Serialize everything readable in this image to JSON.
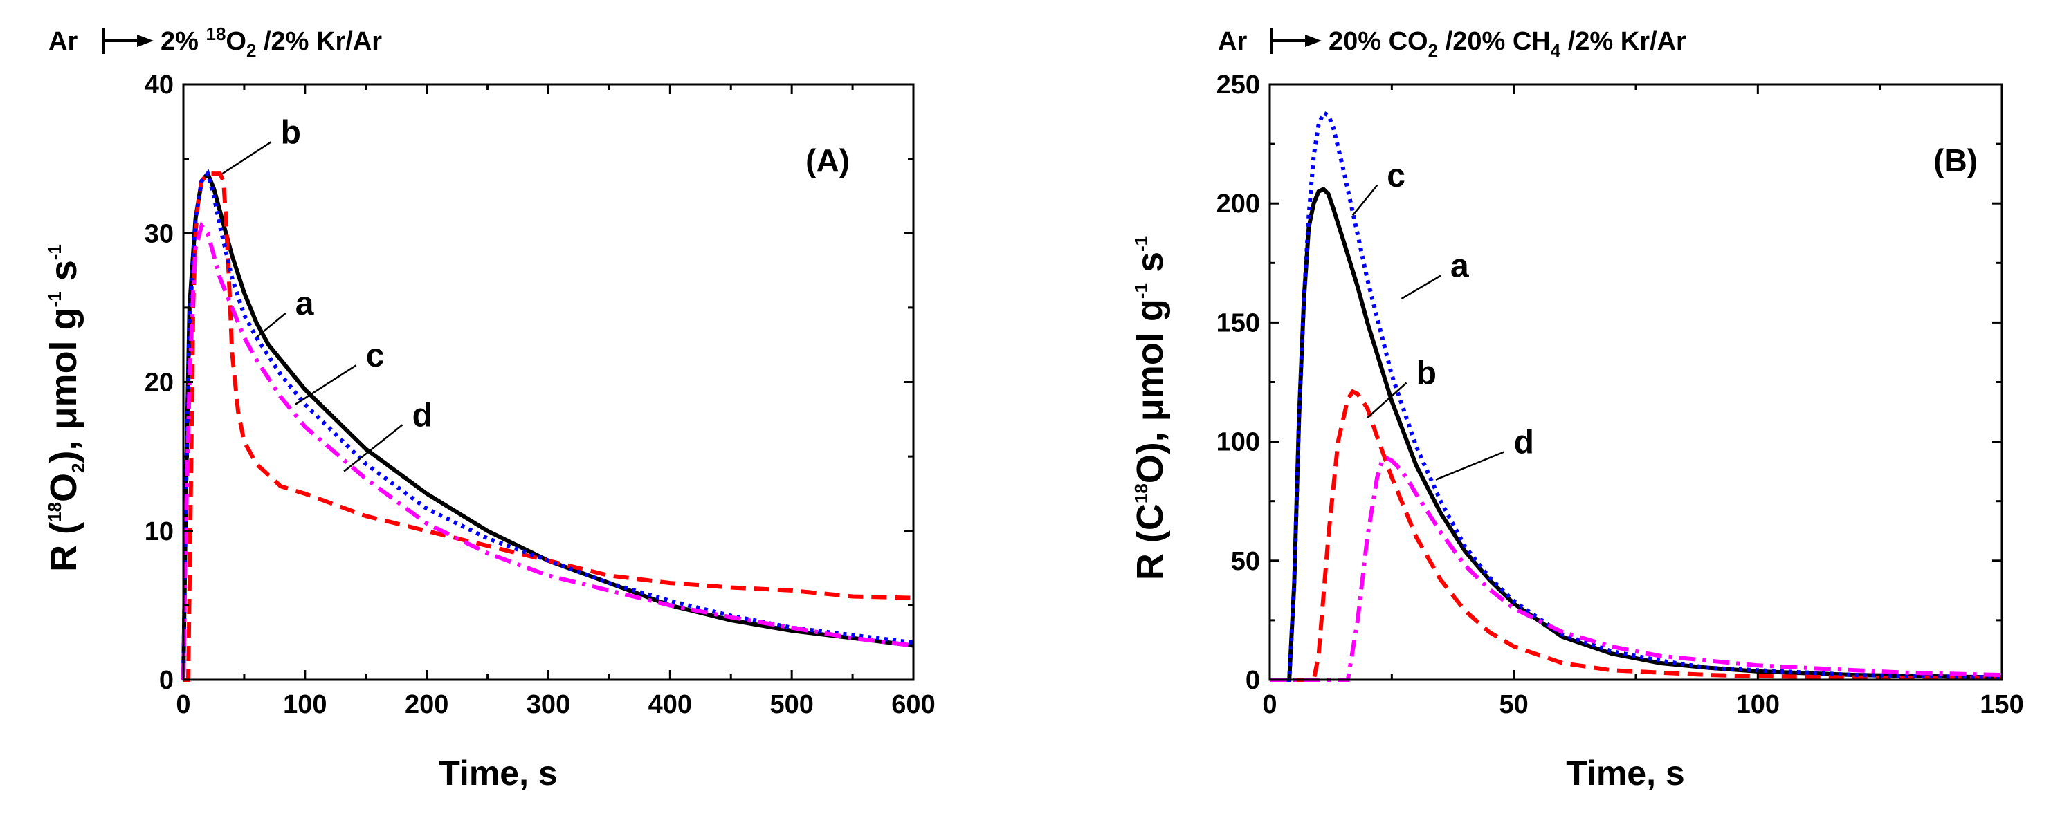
{
  "chart_data": [
    {
      "type": "line",
      "panel_label": "(A)",
      "header": {
        "gas_from": "Ar",
        "percent1": "2% ",
        "iso": "18",
        "gas1": "O",
        "gas1_sub": "2",
        "rest": " /2% Kr/Ar"
      },
      "xlabel": "Time, s",
      "ylabel": {
        "prefix": "R (",
        "iso": "18",
        "main": "O",
        "sub": "2",
        "mid": "), μmol g",
        "exp1": "-1",
        "mid2": " s",
        "exp2": "-1"
      },
      "xlim": [
        0,
        600
      ],
      "ylim": [
        0,
        40
      ],
      "xticks": [
        "0",
        "100",
        "200",
        "300",
        "400",
        "500",
        "600"
      ],
      "xtick_values": [
        0,
        100,
        200,
        300,
        400,
        500,
        600
      ],
      "yticks": [
        "0",
        "10",
        "20",
        "30",
        "40"
      ],
      "ytick_values": [
        0,
        10,
        20,
        30,
        40
      ],
      "series": [
        {
          "name": "a",
          "color": "#000000",
          "dash": "solid",
          "x": [
            0,
            2,
            5,
            10,
            15,
            20,
            25,
            30,
            40,
            50,
            60,
            70,
            80,
            100,
            150,
            200,
            250,
            300,
            350,
            400,
            450,
            500,
            550,
            600
          ],
          "y": [
            0,
            12,
            25,
            31,
            33.5,
            34,
            33,
            31.5,
            28.5,
            26,
            24,
            22.5,
            21.5,
            19.5,
            15.5,
            12.5,
            10,
            8,
            6.5,
            5,
            4,
            3.3,
            2.8,
            2.3
          ]
        },
        {
          "name": "b",
          "color": "#ff0000",
          "dash": "dashed",
          "x": [
            0,
            4,
            6,
            8,
            10,
            12,
            15,
            20,
            25,
            30,
            33,
            35,
            38,
            40,
            45,
            50,
            60,
            80,
            100,
            150,
            200,
            250,
            300,
            350,
            400,
            450,
            500,
            550,
            600
          ],
          "y": [
            0,
            0,
            12,
            25,
            30,
            32,
            33.5,
            34,
            34,
            34,
            33.5,
            31,
            26,
            22,
            18,
            16,
            14.5,
            13,
            12.5,
            11,
            10,
            9,
            8,
            7,
            6.5,
            6.2,
            6,
            5.6,
            5.5
          ]
        },
        {
          "name": "c",
          "color": "#0000ff",
          "dash": "dotted",
          "x": [
            0,
            2,
            5,
            10,
            15,
            20,
            25,
            30,
            40,
            50,
            60,
            80,
            100,
            150,
            200,
            250,
            300,
            350,
            400,
            450,
            500,
            550,
            600
          ],
          "y": [
            0,
            12,
            24,
            31,
            33.5,
            34,
            32.5,
            30.5,
            27,
            24.5,
            23,
            20.5,
            18.5,
            14.5,
            11.5,
            9.5,
            8,
            6.5,
            5.3,
            4.3,
            3.5,
            3,
            2.5
          ]
        },
        {
          "name": "d",
          "color": "#ff00ff",
          "dash": "dashdot",
          "x": [
            0,
            2,
            5,
            8,
            10,
            15,
            20,
            25,
            30,
            40,
            50,
            60,
            80,
            100,
            150,
            200,
            250,
            300,
            350,
            400,
            450,
            500,
            550,
            600
          ],
          "y": [
            0,
            10,
            20,
            26,
            29,
            30.5,
            30,
            28.5,
            27,
            25,
            23,
            21.5,
            19,
            17,
            13.5,
            10.5,
            8.5,
            7,
            6,
            5,
            4.2,
            3.5,
            2.8,
            2.3
          ]
        }
      ],
      "curve_labels": [
        {
          "text": "a",
          "x": 92,
          "y": 25,
          "lx": 60,
          "ly": 23
        },
        {
          "text": "b",
          "x": 80,
          "y": 36.5,
          "lx": 32,
          "ly": 34
        },
        {
          "text": "c",
          "x": 150,
          "y": 21.5,
          "lx": 92,
          "ly": 18.5
        },
        {
          "text": "d",
          "x": 188,
          "y": 17.5,
          "lx": 132,
          "ly": 14
        }
      ]
    },
    {
      "type": "line",
      "panel_label": "(B)",
      "header": {
        "gas_from": "Ar",
        "percent1": "20% CO",
        "iso": "",
        "gas1": "",
        "gas1_sub": "2",
        "rest": " /20% CH",
        "rest_sub": "4",
        "rest2": " /2% Kr/Ar"
      },
      "xlabel": "Time, s",
      "ylabel": {
        "prefix": "R (C",
        "iso": "18",
        "main": "O)",
        "sub": "",
        "mid": ", μmol g",
        "exp1": "-1",
        "mid2": " s",
        "exp2": "-1"
      },
      "xlim": [
        0,
        150
      ],
      "ylim": [
        0,
        250
      ],
      "xticks": [
        "0",
        "50",
        "100",
        "150"
      ],
      "xtick_values": [
        0,
        50,
        100,
        150
      ],
      "yticks": [
        "0",
        "50",
        "100",
        "150",
        "200",
        "250"
      ],
      "ytick_values": [
        0,
        50,
        100,
        150,
        200,
        250
      ],
      "series": [
        {
          "name": "a",
          "color": "#000000",
          "dash": "solid",
          "x": [
            0,
            4,
            5,
            6,
            7,
            8,
            9,
            10,
            11,
            12,
            13,
            15,
            18,
            20,
            25,
            30,
            35,
            40,
            45,
            50,
            60,
            70,
            80,
            90,
            100,
            120,
            150
          ],
          "y": [
            0,
            0,
            40,
            110,
            160,
            190,
            200,
            205,
            206,
            204,
            198,
            185,
            165,
            150,
            117,
            90,
            70,
            54,
            42,
            32,
            18,
            11,
            7,
            5,
            3.5,
            2,
            1
          ]
        },
        {
          "name": "b",
          "color": "#ff0000",
          "dash": "dashed",
          "x": [
            0,
            9,
            10,
            12,
            14,
            16,
            17,
            18,
            20,
            22,
            25,
            30,
            35,
            40,
            45,
            50,
            60,
            70,
            80,
            90,
            100,
            120,
            150
          ],
          "y": [
            0,
            0,
            10,
            60,
            100,
            118,
            121,
            120,
            114,
            102,
            85,
            60,
            42,
            29,
            20,
            14,
            7,
            4,
            3,
            2,
            1.5,
            1,
            0.5
          ]
        },
        {
          "name": "c",
          "color": "#0000ff",
          "dash": "dotted",
          "x": [
            0,
            4,
            5,
            6,
            7,
            8,
            9,
            10,
            11,
            12,
            13,
            15,
            18,
            20,
            25,
            30,
            35,
            40,
            45,
            50,
            60,
            70,
            80,
            90,
            100,
            120,
            150
          ],
          "y": [
            0,
            0,
            40,
            110,
            160,
            195,
            220,
            233,
            238,
            237,
            232,
            215,
            187,
            168,
            128,
            98,
            75,
            56,
            43,
            33,
            19,
            12,
            8,
            5,
            4,
            2,
            1
          ]
        },
        {
          "name": "d",
          "color": "#ff00ff",
          "dash": "dashdot",
          "x": [
            0,
            16,
            18,
            20,
            22,
            23,
            24,
            25,
            26,
            28,
            30,
            35,
            40,
            45,
            50,
            55,
            60,
            70,
            80,
            90,
            100,
            110,
            120,
            130,
            140,
            150
          ],
          "y": [
            0,
            0,
            25,
            60,
            85,
            92,
            93,
            92,
            90,
            85,
            78,
            62,
            48,
            38,
            30,
            25,
            20,
            14,
            10,
            8,
            6,
            5,
            4,
            3,
            2.5,
            2
          ]
        }
      ],
      "curve_labels": [
        {
          "text": "c",
          "x": 24,
          "y": 210,
          "lx": 17,
          "ly": 195
        },
        {
          "text": "a",
          "x": 37,
          "y": 172,
          "lx": 27,
          "ly": 160
        },
        {
          "text": "b",
          "x": 30,
          "y": 127,
          "lx": 20,
          "ly": 110
        },
        {
          "text": "d",
          "x": 50,
          "y": 98,
          "lx": 34,
          "ly": 84
        }
      ]
    }
  ]
}
